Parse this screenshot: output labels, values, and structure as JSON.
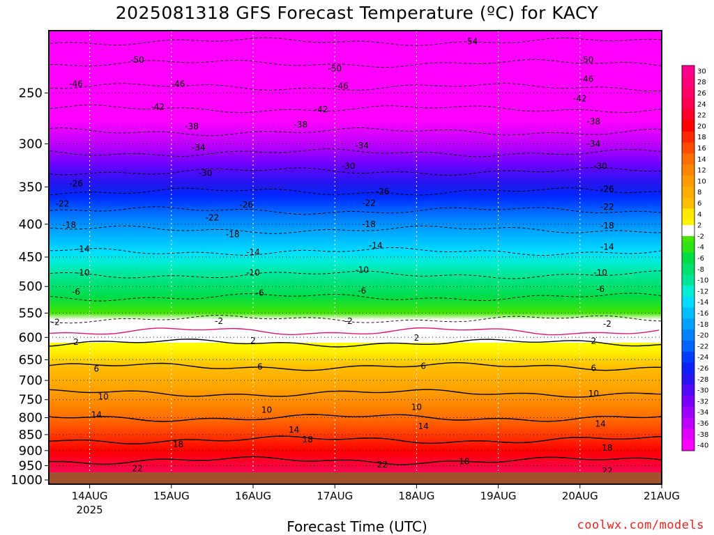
{
  "chart_data": {
    "type": "heatmap",
    "title": "2025081318 GFS Forecast Temperature (ºC) for KACY",
    "xlabel": "Forecast Time (UTC)",
    "x_ticks": [
      "14AUG",
      "15AUG",
      "16AUG",
      "17AUG",
      "18AUG",
      "19AUG",
      "20AUG",
      "21AUG"
    ],
    "x_tick_sub": "2025",
    "y_ticks": [
      250,
      300,
      350,
      400,
      450,
      500,
      550,
      600,
      650,
      700,
      750,
      800,
      850,
      900,
      950,
      1000
    ],
    "y_range_pressure_hPa": [
      200,
      1015
    ],
    "x_range_hours_since_2025081318": [
      -6,
      174
    ],
    "grid": true,
    "color_scale_C": [
      30,
      28,
      26,
      24,
      22,
      20,
      18,
      16,
      14,
      12,
      10,
      8,
      6,
      4,
      2,
      -2,
      -4,
      -6,
      -8,
      -10,
      -12,
      -14,
      -16,
      -18,
      -20,
      -22,
      -24,
      -26,
      -28,
      -30,
      -32,
      -34,
      -36,
      -38,
      -40
    ],
    "colorbar_location": "right",
    "profile": [
      {
        "p": 200,
        "t": -56
      },
      {
        "p": 225,
        "t": -50
      },
      {
        "p": 250,
        "t": -45
      },
      {
        "p": 275,
        "t": -40
      },
      {
        "p": 300,
        "t": -36
      },
      {
        "p": 325,
        "t": -31
      },
      {
        "p": 350,
        "t": -27
      },
      {
        "p": 375,
        "t": -23
      },
      {
        "p": 400,
        "t": -19
      },
      {
        "p": 450,
        "t": -13
      },
      {
        "p": 500,
        "t": -8
      },
      {
        "p": 550,
        "t": -3
      },
      {
        "p": 600,
        "t": 1
      },
      {
        "p": 650,
        "t": 5
      },
      {
        "p": 700,
        "t": 8
      },
      {
        "p": 750,
        "t": 11
      },
      {
        "p": 800,
        "t": 14
      },
      {
        "p": 850,
        "t": 17
      },
      {
        "p": 900,
        "t": 20
      },
      {
        "p": 950,
        "t": 23
      },
      {
        "p": 1000,
        "t": 26
      },
      {
        "p": 1015,
        "t": 27
      }
    ],
    "contour_labels": [
      {
        "level": -54,
        "x": 118,
        "p": 208
      },
      {
        "level": -50,
        "x": 20,
        "p": 222
      },
      {
        "level": -50,
        "x": 78,
        "p": 229
      },
      {
        "level": -50,
        "x": 152,
        "p": 222
      },
      {
        "level": -46,
        "x": 2,
        "p": 242
      },
      {
        "level": -46,
        "x": 32,
        "p": 242
      },
      {
        "level": -46,
        "x": 80,
        "p": 244
      },
      {
        "level": -46,
        "x": 152,
        "p": 238
      },
      {
        "level": -42,
        "x": 26,
        "p": 263
      },
      {
        "level": -42,
        "x": 74,
        "p": 265
      },
      {
        "level": -42,
        "x": 150,
        "p": 255
      },
      {
        "level": -38,
        "x": 36,
        "p": 282
      },
      {
        "level": -38,
        "x": 68,
        "p": 280
      },
      {
        "level": -38,
        "x": 154,
        "p": 277
      },
      {
        "level": -34,
        "x": 38,
        "p": 304
      },
      {
        "level": -34,
        "x": 86,
        "p": 302
      },
      {
        "level": -34,
        "x": 154,
        "p": 300
      },
      {
        "level": -30,
        "x": 40,
        "p": 333
      },
      {
        "level": -30,
        "x": 82,
        "p": 325
      },
      {
        "level": -30,
        "x": 156,
        "p": 325
      },
      {
        "level": -26,
        "x": 2,
        "p": 346
      },
      {
        "level": -26,
        "x": 52,
        "p": 373
      },
      {
        "level": -26,
        "x": 92,
        "p": 356
      },
      {
        "level": -26,
        "x": 158,
        "p": 353
      },
      {
        "level": -22,
        "x": -2,
        "p": 372
      },
      {
        "level": -22,
        "x": 42,
        "p": 391
      },
      {
        "level": -22,
        "x": 88,
        "p": 371
      },
      {
        "level": -22,
        "x": 158,
        "p": 376
      },
      {
        "level": -18,
        "x": 0,
        "p": 401
      },
      {
        "level": -18,
        "x": 48,
        "p": 415
      },
      {
        "level": -18,
        "x": 88,
        "p": 400
      },
      {
        "level": -18,
        "x": 158,
        "p": 402
      },
      {
        "level": -14,
        "x": 4,
        "p": 437
      },
      {
        "level": -14,
        "x": 54,
        "p": 442
      },
      {
        "level": -14,
        "x": 90,
        "p": 432
      },
      {
        "level": -14,
        "x": 158,
        "p": 434
      },
      {
        "level": -10,
        "x": 4,
        "p": 476
      },
      {
        "level": -10,
        "x": 54,
        "p": 476
      },
      {
        "level": -10,
        "x": 86,
        "p": 471
      },
      {
        "level": -10,
        "x": 156,
        "p": 476
      },
      {
        "level": -6,
        "x": 2,
        "p": 510
      },
      {
        "level": -6,
        "x": 56,
        "p": 512
      },
      {
        "level": -6,
        "x": 86,
        "p": 508
      },
      {
        "level": -6,
        "x": 156,
        "p": 505
      },
      {
        "level": -2,
        "x": -4,
        "p": 568
      },
      {
        "level": -2,
        "x": 44,
        "p": 566
      },
      {
        "level": -2,
        "x": 82,
        "p": 566
      },
      {
        "level": -2,
        "x": 158,
        "p": 572
      },
      {
        "level": 2,
        "x": 2,
        "p": 610
      },
      {
        "level": 2,
        "x": 54,
        "p": 607
      },
      {
        "level": 2,
        "x": 102,
        "p": 601
      },
      {
        "level": 2,
        "x": 154,
        "p": 608
      },
      {
        "level": 6,
        "x": 8,
        "p": 672
      },
      {
        "level": 6,
        "x": 56,
        "p": 667
      },
      {
        "level": 6,
        "x": 104,
        "p": 665
      },
      {
        "level": 6,
        "x": 154,
        "p": 670
      },
      {
        "level": 10,
        "x": 10,
        "p": 742
      },
      {
        "level": 10,
        "x": 58,
        "p": 778
      },
      {
        "level": 10,
        "x": 102,
        "p": 770
      },
      {
        "level": 10,
        "x": 154,
        "p": 734
      },
      {
        "level": 14,
        "x": 8,
        "p": 792
      },
      {
        "level": 14,
        "x": 66,
        "p": 836
      },
      {
        "level": 14,
        "x": 104,
        "p": 825
      },
      {
        "level": 14,
        "x": 156,
        "p": 818
      },
      {
        "level": 18,
        "x": 32,
        "p": 880
      },
      {
        "level": 18,
        "x": 70,
        "p": 865
      },
      {
        "level": 18,
        "x": 116,
        "p": 936
      },
      {
        "level": 18,
        "x": 158,
        "p": 892
      },
      {
        "level": 22,
        "x": 20,
        "p": 960
      },
      {
        "level": 22,
        "x": 92,
        "p": 947
      },
      {
        "level": 22,
        "x": 158,
        "p": 968
      }
    ]
  },
  "colors": {
    "ground": "#a0522d",
    "credit": "#e8251e",
    "freezing_line": "#e0156e"
  },
  "credit": "coolwx.com/models"
}
